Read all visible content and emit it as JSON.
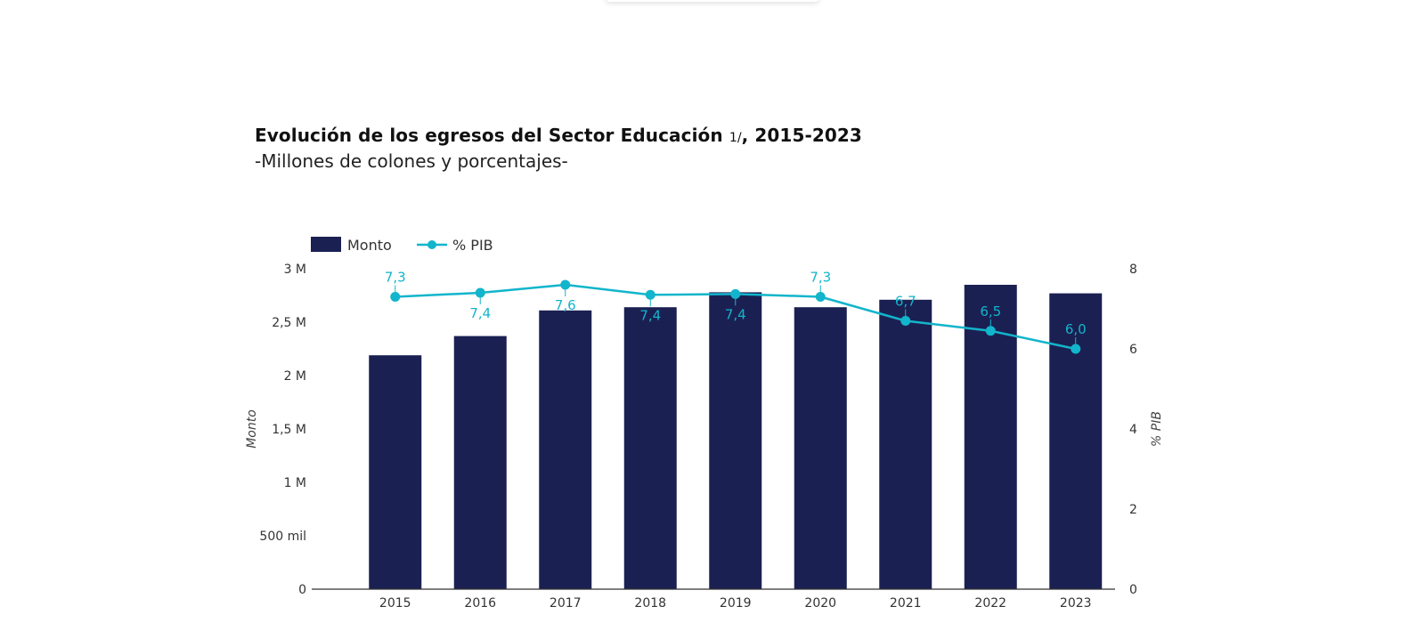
{
  "title": {
    "main": "Evolución de los egresos del Sector Educación",
    "note": "1/",
    "range": ", 2015-2023",
    "subtitle": "-Millones de colones y porcentajes-"
  },
  "colors": {
    "bar": "#1b2052",
    "line": "#12b5cb",
    "axis": "#333333"
  },
  "chart_data": {
    "type": "bar",
    "categories": [
      "2015",
      "2016",
      "2017",
      "2018",
      "2019",
      "2020",
      "2021",
      "2022",
      "2023"
    ],
    "series": [
      {
        "name": "Monto",
        "kind": "bar",
        "axis": "left",
        "values": [
          2190000,
          2370000,
          2610000,
          2640000,
          2780000,
          2640000,
          2710000,
          2850000,
          2770000
        ]
      },
      {
        "name": "% PIB",
        "kind": "line",
        "axis": "right",
        "values": [
          7.3,
          7.4,
          7.6,
          7.35,
          7.37,
          7.3,
          6.7,
          6.45,
          6.0
        ],
        "labels": [
          "7,3",
          "7,4",
          "7,6",
          "7,4",
          "7,4",
          "7,3",
          "6,7",
          "6,5",
          "6,0"
        ],
        "label_pos": [
          "above",
          "below",
          "below",
          "below",
          "below",
          "above",
          "above",
          "above",
          "above"
        ]
      }
    ],
    "ylabel": "Monto",
    "ylabel_right": "% PIB",
    "ylim": [
      0,
      3000000
    ],
    "ylim_right": [
      0,
      8
    ],
    "yticks": [
      {
        "value": 0,
        "label": "0"
      },
      {
        "value": 500000,
        "label": "500 mil"
      },
      {
        "value": 1000000,
        "label": "1 M"
      },
      {
        "value": 1500000,
        "label": "1,5 M"
      },
      {
        "value": 2000000,
        "label": "2 M"
      },
      {
        "value": 2500000,
        "label": "2,5 M"
      },
      {
        "value": 3000000,
        "label": "3 M"
      }
    ],
    "yticks_right": [
      {
        "value": 0,
        "label": "0"
      },
      {
        "value": 2,
        "label": "2"
      },
      {
        "value": 4,
        "label": "4"
      },
      {
        "value": 6,
        "label": "6"
      },
      {
        "value": 8,
        "label": "8"
      }
    ],
    "legend": [
      "Monto",
      "% PIB"
    ],
    "legend_position": "top-left",
    "grid": false
  }
}
